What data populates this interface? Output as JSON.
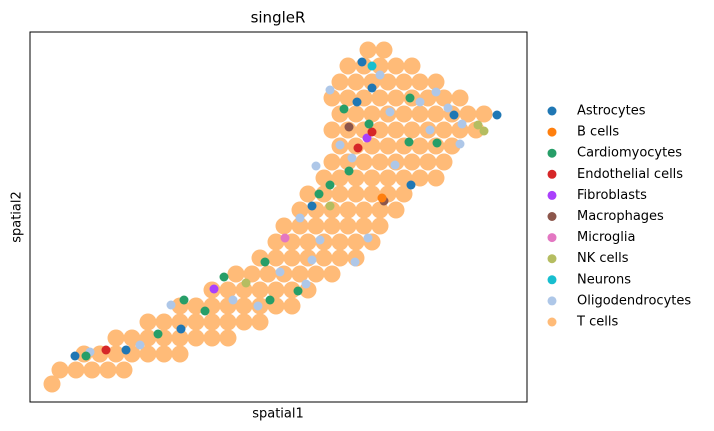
{
  "chart_data": {
    "type": "scatter",
    "title": "singleR",
    "x_label": "spatial1",
    "y_label": "spatial2",
    "xlim": [
      0,
      497
    ],
    "ylim": [
      0,
      370
    ],
    "legend": "outside-right",
    "series": [
      {
        "name": "Astrocytes",
        "color": "#1f77b4",
        "x": [
          45,
          96,
          151,
          282,
          342,
          332,
          381,
          424,
          467,
          327
        ],
        "y": [
          46,
          52,
          73,
          196,
          314,
          340,
          217,
          287,
          287,
          300
        ]
      },
      {
        "name": "B cells",
        "color": "#ff7f0e",
        "x": [
          352
        ],
        "y": [
          204
        ]
      },
      {
        "name": "Cardiomyocytes",
        "color": "#279e68",
        "x": [
          56,
          128,
          175,
          194,
          235,
          240,
          268,
          289,
          300,
          319,
          314,
          380,
          379,
          407,
          339,
          154
        ],
        "y": [
          46,
          68,
          91,
          125,
          140,
          102,
          111,
          208,
          217,
          231,
          293,
          304,
          260,
          259,
          278,
          102
        ]
      },
      {
        "name": "Endothelial cells",
        "color": "#d62728",
        "x": [
          76,
          328,
          342
        ],
        "y": [
          52,
          254,
          270
        ]
      },
      {
        "name": "Fibroblasts",
        "color": "#aa40fc",
        "x": [
          184,
          337
        ],
        "y": [
          113,
          264
        ]
      },
      {
        "name": "Macrophages",
        "color": "#8c564b",
        "x": [
          319,
          354
        ],
        "y": [
          275,
          201
        ]
      },
      {
        "name": "Microglia",
        "color": "#e377c2",
        "x": [
          255
        ],
        "y": [
          164
        ]
      },
      {
        "name": "NK cells",
        "color": "#b5bd61",
        "x": [
          216,
          300,
          454,
          448
        ],
        "y": [
          119,
          196,
          271,
          277
        ]
      },
      {
        "name": "Neurons",
        "color": "#17becf",
        "x": [
          342
        ],
        "y": [
          336
        ]
      },
      {
        "name": "Oligodendrocytes",
        "color": "#aec7e8",
        "x": [
          60,
          110,
          141,
          203,
          228,
          276,
          282,
          290,
          325,
          338,
          310,
          286,
          322,
          300,
          360,
          400,
          406,
          430,
          365,
          350,
          270,
          250,
          390,
          418,
          432
        ],
        "y": [
          50,
          57,
          97,
          102,
          96,
          118,
          142,
          162,
          140,
          164,
          257,
          236,
          244,
          312,
          290,
          272,
          310,
          258,
          237,
          327,
          184,
          130,
          300,
          294,
          278
        ]
      },
      {
        "name": "T cells",
        "color": "#ffbb78",
        "x": [
          338,
          354,
          318,
          334,
          350,
          366,
          382,
          310,
          326,
          342,
          358,
          374,
          390,
          406,
          302,
          318,
          334,
          350,
          366,
          382,
          398,
          414,
          430,
          310,
          326,
          342,
          358,
          374,
          390,
          406,
          422,
          438,
          454,
          302,
          318,
          334,
          350,
          366,
          382,
          398,
          414,
          430,
          446,
          310,
          326,
          342,
          358,
          374,
          390,
          406,
          422,
          302,
          318,
          334,
          350,
          366,
          382,
          398,
          414,
          294,
          310,
          326,
          342,
          358,
          374,
          390,
          406,
          278,
          294,
          310,
          326,
          342,
          358,
          374,
          270,
          286,
          302,
          318,
          334,
          350,
          366,
          254,
          270,
          286,
          302,
          318,
          334,
          350,
          246,
          262,
          278,
          294,
          310,
          326,
          342,
          230,
          246,
          262,
          278,
          294,
          310,
          326,
          206,
          222,
          238,
          254,
          270,
          286,
          302,
          182,
          198,
          214,
          230,
          246,
          262,
          278,
          150,
          166,
          182,
          198,
          214,
          230,
          246,
          262,
          118,
          134,
          150,
          166,
          182,
          198,
          214,
          230,
          86,
          102,
          118,
          134,
          150,
          166,
          182,
          198,
          54,
          70,
          86,
          102,
          118,
          134,
          150,
          30,
          46,
          62,
          78,
          94,
          22
        ],
        "y": [
          352,
          352,
          336,
          336,
          336,
          336,
          336,
          320,
          320,
          320,
          320,
          320,
          320,
          320,
          304,
          304,
          304,
          304,
          304,
          304,
          304,
          304,
          304,
          288,
          288,
          288,
          288,
          288,
          288,
          288,
          288,
          288,
          288,
          272,
          272,
          272,
          272,
          272,
          272,
          272,
          272,
          272,
          272,
          256,
          256,
          256,
          256,
          256,
          256,
          256,
          256,
          240,
          240,
          240,
          240,
          240,
          240,
          240,
          240,
          224,
          224,
          224,
          224,
          224,
          224,
          224,
          224,
          208,
          208,
          208,
          208,
          208,
          208,
          208,
          192,
          192,
          192,
          192,
          192,
          192,
          192,
          176,
          176,
          176,
          176,
          176,
          176,
          176,
          160,
          160,
          160,
          160,
          160,
          160,
          160,
          144,
          144,
          144,
          144,
          144,
          144,
          144,
          128,
          128,
          128,
          128,
          128,
          128,
          128,
          112,
          112,
          112,
          112,
          112,
          112,
          112,
          96,
          96,
          96,
          96,
          96,
          96,
          96,
          96,
          80,
          80,
          80,
          80,
          80,
          80,
          80,
          80,
          64,
          64,
          64,
          64,
          64,
          64,
          64,
          64,
          48,
          48,
          48,
          48,
          48,
          48,
          48,
          32,
          32,
          32,
          32,
          32,
          18
        ]
      }
    ]
  }
}
